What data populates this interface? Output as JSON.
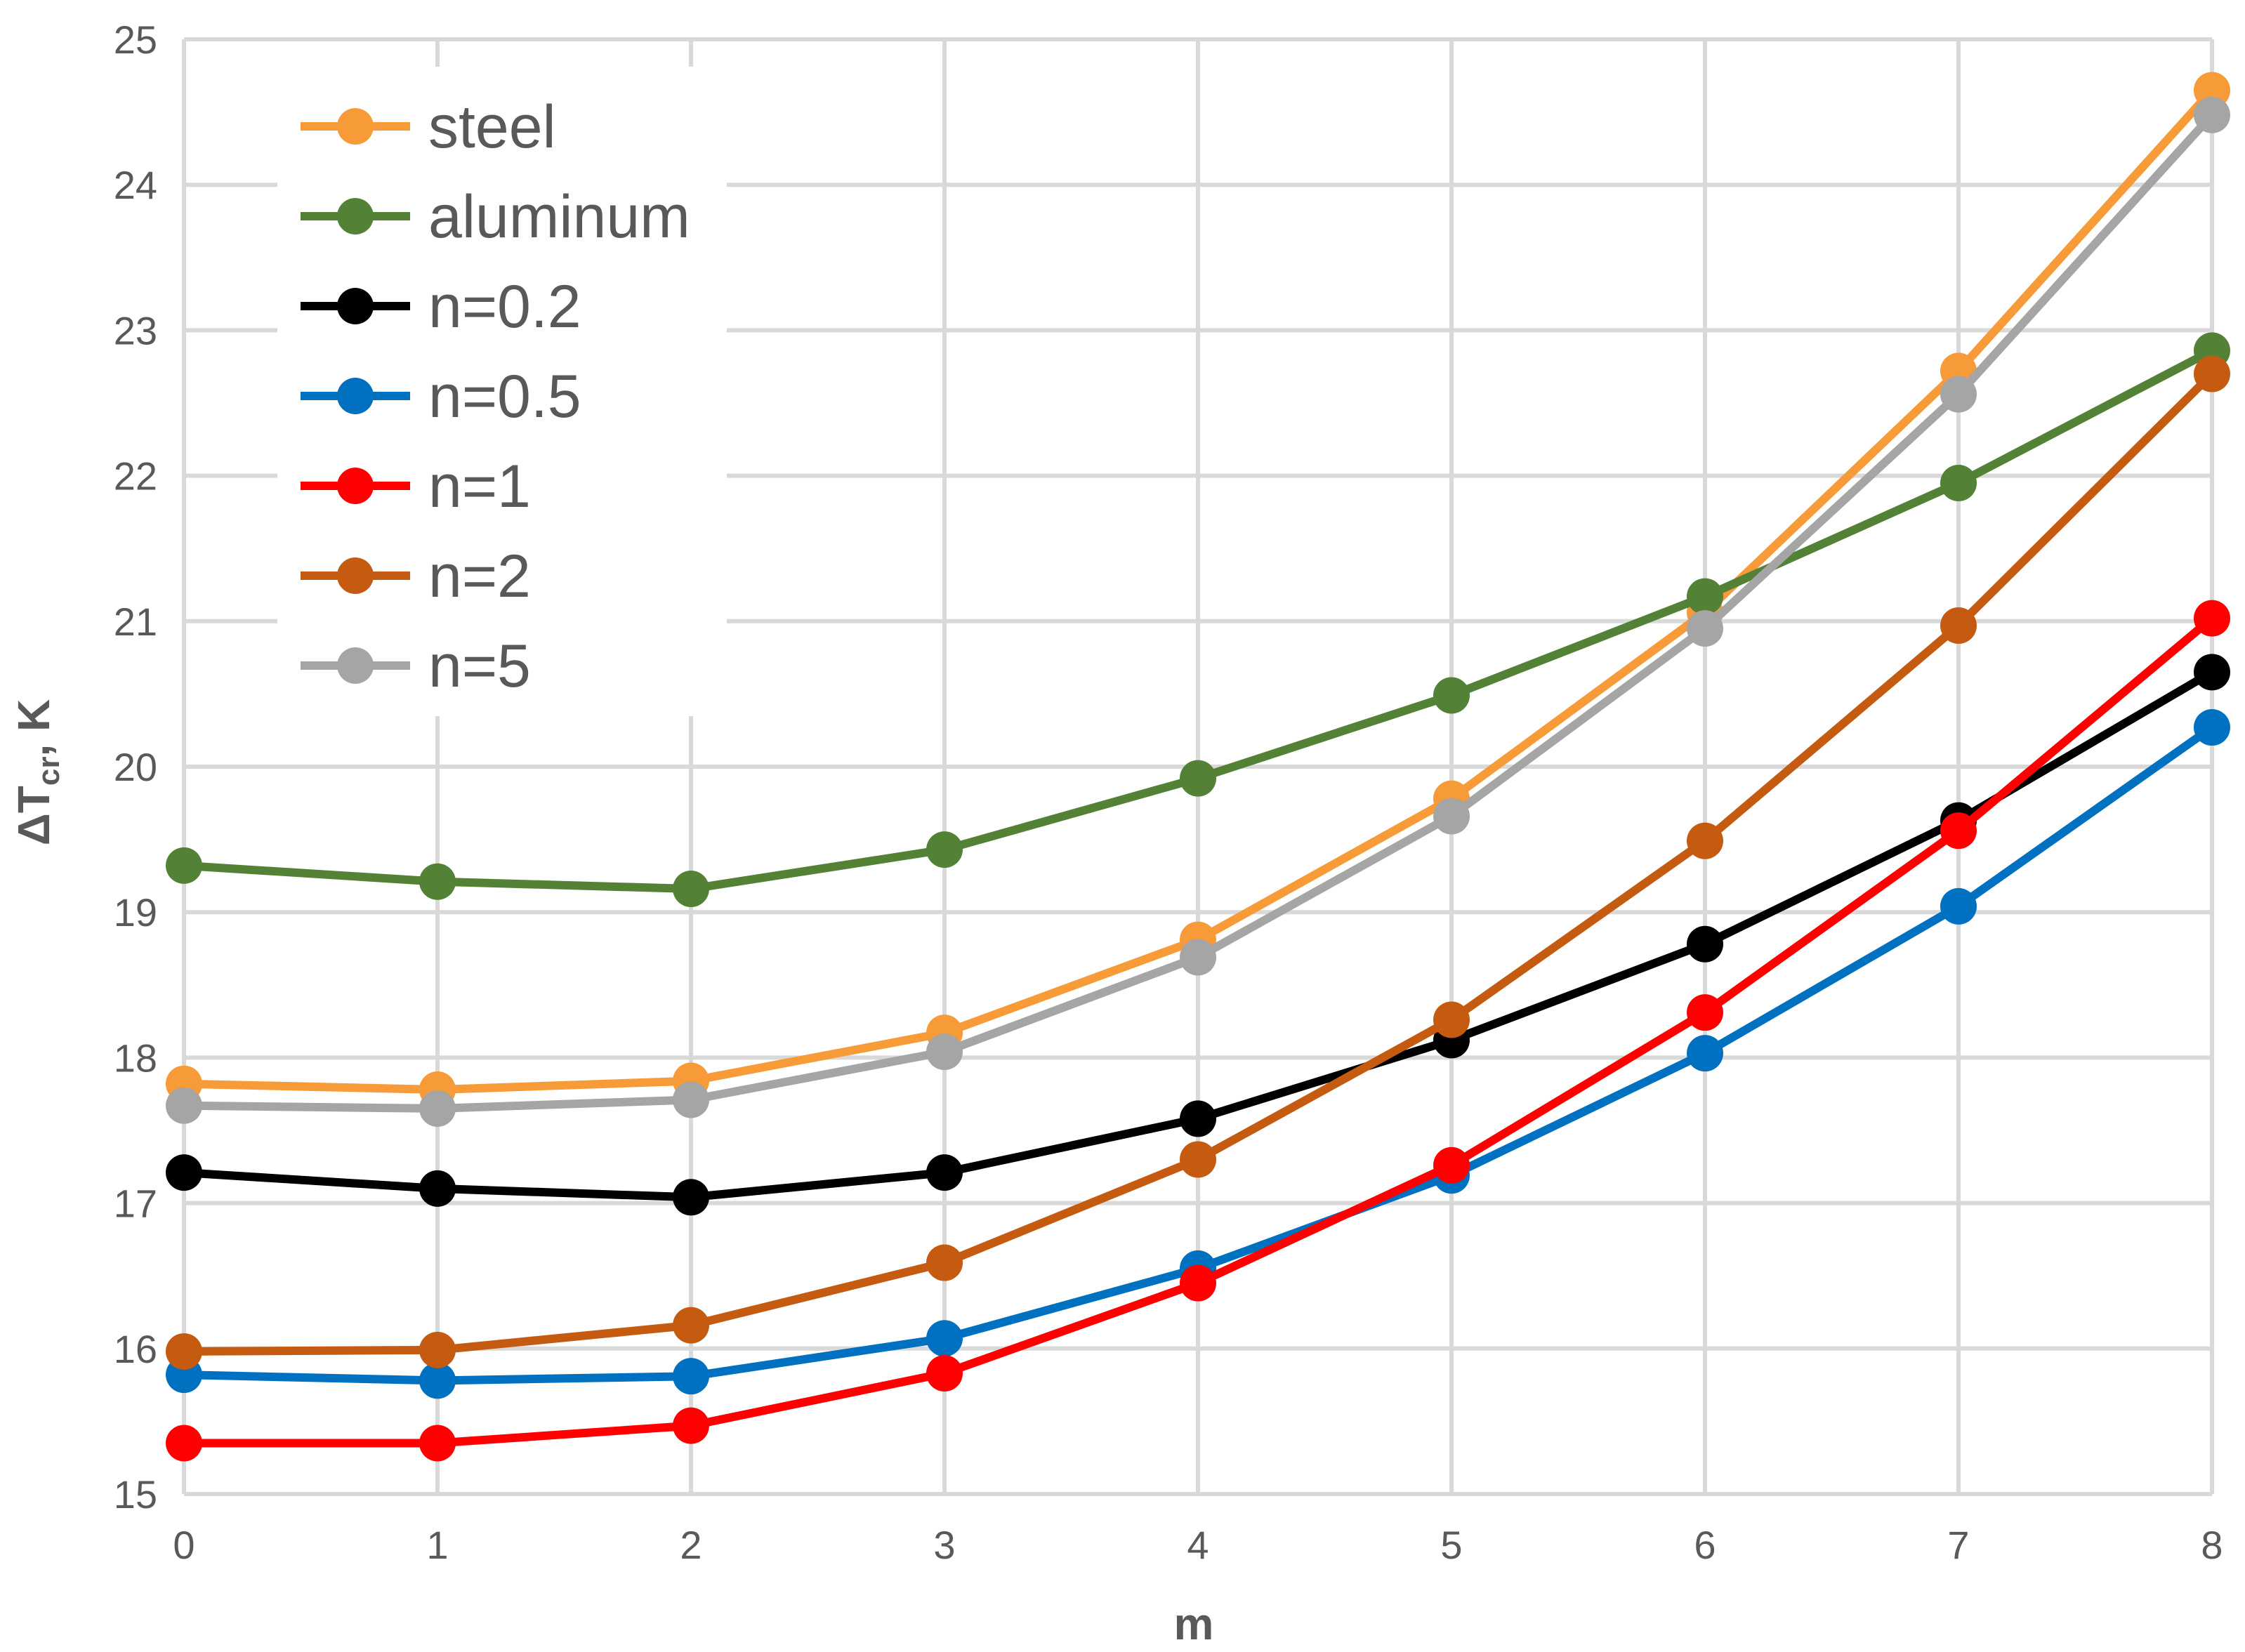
{
  "chart_data": {
    "type": "line",
    "title": "",
    "xlabel": "m",
    "ylabel": "ΔT",
    "ylabel_sub": "cr",
    "ylabel_suffix": ", K",
    "xlim": [
      0,
      8
    ],
    "ylim": [
      15,
      25
    ],
    "x_ticks": [
      0,
      1,
      2,
      3,
      4,
      5,
      6,
      7,
      8
    ],
    "y_ticks": [
      15,
      16,
      17,
      18,
      19,
      20,
      21,
      22,
      23,
      24,
      25
    ],
    "grid": true,
    "legend_position": "top-left",
    "x": [
      0,
      1,
      2,
      3,
      4,
      5,
      6,
      7,
      8
    ],
    "series": [
      {
        "name": "steel",
        "color": "#f79a38",
        "values": [
          17.82,
          17.78,
          17.84,
          18.17,
          18.81,
          19.78,
          21.06,
          22.72,
          24.65
        ]
      },
      {
        "name": "aluminum",
        "color": "#538135",
        "values": [
          19.32,
          19.21,
          19.16,
          19.43,
          19.92,
          20.49,
          21.17,
          21.95,
          22.86
        ]
      },
      {
        "name": "n=0.2",
        "color": "#000000",
        "values": [
          17.21,
          17.1,
          17.04,
          17.21,
          17.58,
          18.12,
          18.78,
          19.63,
          20.65
        ]
      },
      {
        "name": "n=0.5",
        "color": "#0070c0",
        "values": [
          15.82,
          15.78,
          15.81,
          16.07,
          16.55,
          17.19,
          18.03,
          19.04,
          20.27
        ]
      },
      {
        "name": "n=1",
        "color": "#ff0000",
        "values": [
          15.35,
          15.35,
          15.47,
          15.83,
          16.45,
          17.26,
          18.31,
          19.56,
          21.02
        ]
      },
      {
        "name": "n=2",
        "color": "#c55a11",
        "values": [
          15.98,
          15.99,
          16.16,
          16.59,
          17.3,
          18.26,
          19.49,
          20.97,
          22.7
        ]
      },
      {
        "name": "n=5",
        "color": "#a5a5a5",
        "values": [
          17.67,
          17.65,
          17.71,
          18.04,
          18.69,
          19.66,
          20.95,
          22.56,
          24.48
        ]
      }
    ]
  }
}
